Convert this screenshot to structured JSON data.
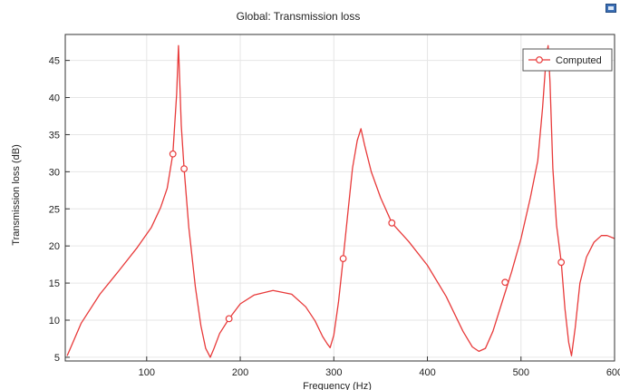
{
  "window": {
    "corner_icon": "plot-window-icon"
  },
  "chart_data": {
    "type": "line",
    "title": "Global: Transmission loss",
    "xlabel": "Frequency (Hz)",
    "ylabel": "Transmission loss (dB)",
    "xlim": [
      13,
      600
    ],
    "ylim": [
      4.5,
      48.5
    ],
    "xticks": [
      100,
      200,
      300,
      400,
      500,
      600
    ],
    "yticks": [
      5,
      10,
      15,
      20,
      25,
      30,
      35,
      40,
      45
    ],
    "grid": true,
    "legend": {
      "position": "top-right",
      "entries": [
        "Computed"
      ]
    },
    "colors": {
      "series": "#e83a3a"
    },
    "series": [
      {
        "name": "Computed",
        "x": [
          15,
          30,
          50,
          70,
          90,
          105,
          115,
          122,
          128,
          132,
          134,
          137,
          140,
          145,
          152,
          158,
          163,
          168,
          172,
          178,
          188,
          200,
          215,
          235,
          255,
          270,
          280,
          288,
          293,
          296,
          300,
          305,
          310,
          315,
          320,
          325,
          329,
          333,
          340,
          350,
          362,
          380,
          400,
          420,
          438,
          448,
          455,
          462,
          470,
          480,
          490,
          500,
          510,
          518,
          523,
          527,
          529,
          531,
          534,
          538,
          543,
          547,
          551,
          554,
          558,
          563,
          570,
          578,
          586,
          592,
          600
        ],
        "y": [
          5.2,
          9.6,
          13.5,
          16.6,
          19.8,
          22.5,
          25.2,
          27.8,
          32.4,
          40.5,
          47.0,
          36.2,
          30.4,
          22.5,
          14.5,
          9.2,
          6.2,
          5.0,
          6.2,
          8.2,
          10.2,
          12.2,
          13.4,
          14.0,
          13.5,
          11.8,
          9.9,
          7.8,
          6.8,
          6.3,
          8.0,
          12.5,
          18.3,
          24.5,
          30.5,
          34.2,
          35.8,
          33.5,
          30.0,
          26.5,
          23.1,
          20.6,
          17.4,
          13.2,
          8.5,
          6.4,
          5.8,
          6.2,
          8.5,
          12.5,
          16.5,
          21.0,
          26.5,
          31.5,
          38.5,
          45.5,
          47.0,
          42.0,
          30.5,
          22.8,
          17.8,
          11.5,
          7.0,
          5.2,
          9.0,
          15.0,
          18.5,
          20.5,
          21.4,
          21.4,
          21.0
        ]
      }
    ],
    "markers": {
      "series": "Computed",
      "x": [
        128,
        140,
        188,
        310,
        362,
        483,
        543
      ],
      "y": [
        32.4,
        30.4,
        10.2,
        18.3,
        23.1,
        15.1,
        17.8
      ]
    }
  }
}
